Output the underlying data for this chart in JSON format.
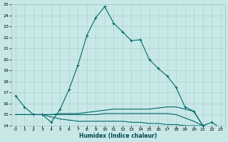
{
  "xlabel": "Humidex (Indice chaleur)",
  "bg_color": "#c8e8e8",
  "grid_color": "#b0d0d0",
  "line_color": "#006868",
  "x_main": [
    0,
    1,
    2,
    3,
    4,
    5,
    6,
    7,
    8,
    9,
    10,
    11,
    12,
    13,
    14,
    15,
    16,
    17,
    18,
    19,
    20,
    21,
    22,
    23
  ],
  "y_main": [
    16.7,
    15.7,
    15.0,
    15.0,
    14.3,
    15.5,
    17.3,
    19.5,
    22.2,
    23.8,
    24.8,
    23.3,
    22.5,
    21.7,
    21.8,
    20.0,
    19.2,
    18.5,
    17.5,
    15.7,
    15.3,
    14.0,
    14.3,
    13.8
  ],
  "y_flat1": [
    15.0,
    15.0,
    15.0,
    15.0,
    15.0,
    15.1,
    15.1,
    15.1,
    15.2,
    15.3,
    15.4,
    15.5,
    15.5,
    15.5,
    15.5,
    15.5,
    15.6,
    15.7,
    15.7,
    15.5,
    15.3,
    14.0,
    13.9,
    13.8
  ],
  "y_flat2": [
    15.0,
    15.0,
    15.0,
    15.0,
    15.0,
    15.0,
    15.0,
    15.0,
    15.0,
    15.0,
    15.1,
    15.1,
    15.1,
    15.1,
    15.1,
    15.1,
    15.1,
    15.1,
    15.0,
    14.7,
    14.4,
    14.0,
    13.9,
    13.8
  ],
  "y_flat3": [
    15.0,
    15.0,
    15.0,
    15.0,
    14.8,
    14.6,
    14.5,
    14.4,
    14.4,
    14.4,
    14.4,
    14.4,
    14.4,
    14.3,
    14.3,
    14.2,
    14.2,
    14.1,
    14.1,
    14.0,
    14.0,
    14.0,
    13.9,
    13.8
  ],
  "xlim": [
    -0.5,
    23.5
  ],
  "ylim": [
    14,
    25
  ],
  "yticks": [
    14,
    15,
    16,
    17,
    18,
    19,
    20,
    21,
    22,
    23,
    24,
    25
  ],
  "xticks": [
    0,
    1,
    2,
    3,
    4,
    5,
    6,
    7,
    8,
    9,
    10,
    11,
    12,
    13,
    14,
    15,
    16,
    17,
    18,
    19,
    20,
    21,
    22,
    23
  ]
}
